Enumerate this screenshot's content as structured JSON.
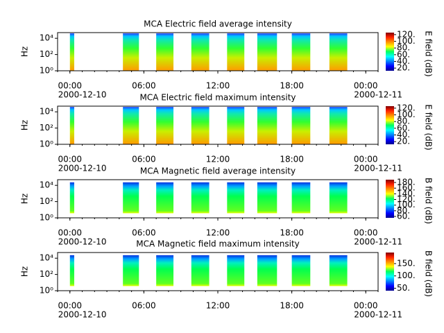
{
  "chart_data": [
    {
      "type": "spectrogram",
      "title": "MCA  Electric field average intensity",
      "ylabel": "Hz",
      "log_y": true,
      "ylim": [
        1,
        50000
      ],
      "yticks": [
        {
          "value": 1,
          "label": "10⁰"
        },
        {
          "value": 100,
          "label": "10²"
        },
        {
          "value": 10000,
          "label": "10⁴"
        }
      ],
      "xlim": [
        -1,
        25
      ],
      "xticks": [
        {
          "value": 0,
          "label": "00:00"
        },
        {
          "value": 6,
          "label": "06:00"
        },
        {
          "value": 12,
          "label": "12:00"
        },
        {
          "value": 18,
          "label": "18:00"
        },
        {
          "value": 24,
          "label": "00:00"
        }
      ],
      "date_labels": [
        {
          "value": 0,
          "label": "2000-12-10"
        },
        {
          "value": 24,
          "label": "2000-12-11"
        }
      ],
      "segments": [
        [
          0,
          0.35
        ],
        [
          4.3,
          5.6
        ],
        [
          7.0,
          8.4
        ],
        [
          9.85,
          11.3
        ],
        [
          12.75,
          14.15
        ],
        [
          15.2,
          16.8
        ],
        [
          18.0,
          19.5
        ],
        [
          21.05,
          22.5
        ]
      ],
      "colorbar_label": "E field (dB)",
      "clim": [
        12,
        126
      ],
      "cticks": [
        {
          "value": 20,
          "label": "20."
        },
        {
          "value": 40,
          "label": "40."
        },
        {
          "value": 60,
          "label": "60."
        },
        {
          "value": 80,
          "label": "80."
        },
        {
          "value": 100,
          "label": "100."
        },
        {
          "value": 120,
          "label": "120."
        }
      ]
    },
    {
      "type": "spectrogram",
      "title": "MCA  Electric field maximum intensity",
      "ylabel": "Hz",
      "log_y": true,
      "ylim": [
        1,
        50000
      ],
      "yticks": [
        {
          "value": 1,
          "label": "10⁰"
        },
        {
          "value": 100,
          "label": "10²"
        },
        {
          "value": 10000,
          "label": "10⁴"
        }
      ],
      "xlim": [
        -1,
        25
      ],
      "xticks": [
        {
          "value": 0,
          "label": "00:00"
        },
        {
          "value": 6,
          "label": "06:00"
        },
        {
          "value": 12,
          "label": "12:00"
        },
        {
          "value": 18,
          "label": "18:00"
        },
        {
          "value": 24,
          "label": "00:00"
        }
      ],
      "date_labels": [
        {
          "value": 0,
          "label": "2000-12-10"
        },
        {
          "value": 24,
          "label": "2000-12-11"
        }
      ],
      "segments": [
        [
          0,
          0.35
        ],
        [
          4.3,
          5.6
        ],
        [
          7.0,
          8.4
        ],
        [
          9.85,
          11.3
        ],
        [
          12.75,
          14.15
        ],
        [
          15.2,
          16.8
        ],
        [
          18.0,
          19.5
        ],
        [
          21.05,
          22.5
        ]
      ],
      "colorbar_label": "E field (dB)",
      "clim": [
        12,
        126
      ],
      "cticks": [
        {
          "value": 20,
          "label": "20."
        },
        {
          "value": 40,
          "label": "40."
        },
        {
          "value": 60,
          "label": "60."
        },
        {
          "value": 80,
          "label": "80."
        },
        {
          "value": 100,
          "label": "100."
        },
        {
          "value": 120,
          "label": "120."
        }
      ]
    },
    {
      "type": "spectrogram",
      "title": "MCA  Magnetic field average intensity",
      "ylabel": "Hz",
      "log_y": true,
      "ylim": [
        1,
        50000
      ],
      "yticks": [
        {
          "value": 1,
          "label": "10⁰"
        },
        {
          "value": 100,
          "label": "10²"
        },
        {
          "value": 10000,
          "label": "10⁴"
        }
      ],
      "xlim": [
        -1,
        25
      ],
      "xticks": [
        {
          "value": 0,
          "label": "00:00"
        },
        {
          "value": 6,
          "label": "06:00"
        },
        {
          "value": 12,
          "label": "12:00"
        },
        {
          "value": 18,
          "label": "18:00"
        },
        {
          "value": 24,
          "label": "00:00"
        }
      ],
      "date_labels": [
        {
          "value": 0,
          "label": "2000-12-10"
        },
        {
          "value": 24,
          "label": "2000-12-11"
        }
      ],
      "segments": [
        [
          0,
          0.35
        ],
        [
          4.3,
          5.6
        ],
        [
          7.0,
          8.4
        ],
        [
          9.85,
          11.3
        ],
        [
          12.75,
          14.15
        ],
        [
          15.2,
          16.8
        ],
        [
          18.0,
          19.5
        ],
        [
          21.05,
          22.5
        ]
      ],
      "colorbar_label": "B field (dB)",
      "clim": [
        55,
        190
      ],
      "cticks": [
        {
          "value": 60,
          "label": "60."
        },
        {
          "value": 80,
          "label": "80."
        },
        {
          "value": 100,
          "label": "100."
        },
        {
          "value": 120,
          "label": "120."
        },
        {
          "value": 140,
          "label": "140."
        },
        {
          "value": 160,
          "label": "160."
        },
        {
          "value": 180,
          "label": "180."
        }
      ]
    },
    {
      "type": "spectrogram",
      "title": "MCA  Magnetic field maximum intensity",
      "ylabel": "Hz",
      "log_y": true,
      "ylim": [
        1,
        50000
      ],
      "yticks": [
        {
          "value": 1,
          "label": "10⁰"
        },
        {
          "value": 100,
          "label": "10²"
        },
        {
          "value": 10000,
          "label": "10⁴"
        }
      ],
      "xlim": [
        -1,
        25
      ],
      "xticks": [
        {
          "value": 0,
          "label": "00:00"
        },
        {
          "value": 6,
          "label": "06:00"
        },
        {
          "value": 12,
          "label": "12:00"
        },
        {
          "value": 18,
          "label": "18:00"
        },
        {
          "value": 24,
          "label": "00:00"
        }
      ],
      "date_labels": [
        {
          "value": 0,
          "label": "2000-12-10"
        },
        {
          "value": 24,
          "label": "2000-12-11"
        }
      ],
      "segments": [
        [
          0,
          0.35
        ],
        [
          4.3,
          5.6
        ],
        [
          7.0,
          8.4
        ],
        [
          9.85,
          11.3
        ],
        [
          12.75,
          14.15
        ],
        [
          15.2,
          16.8
        ],
        [
          18.0,
          19.5
        ],
        [
          21.05,
          22.5
        ]
      ],
      "colorbar_label": "B field (dB)",
      "clim": [
        40,
        195
      ],
      "cticks": [
        {
          "value": 50,
          "label": "50."
        },
        {
          "value": 100,
          "label": "100."
        },
        {
          "value": 150,
          "label": "150."
        }
      ]
    }
  ]
}
